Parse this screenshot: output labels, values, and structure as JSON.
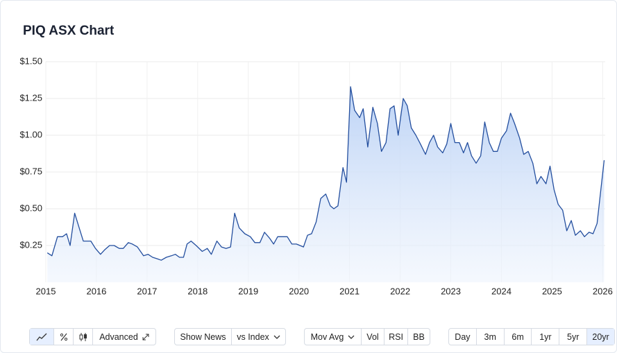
{
  "chart_data": {
    "type": "area",
    "title": "PIQ ASX Chart",
    "x": [
      2015.03,
      2015.12,
      2015.23,
      2015.33,
      2015.41,
      2015.48,
      2015.57,
      2015.66,
      2015.74,
      2015.89,
      2015.98,
      2016.08,
      2016.16,
      2016.26,
      2016.35,
      2016.45,
      2016.53,
      2016.63,
      2016.71,
      2016.81,
      2016.93,
      2017.02,
      2017.11,
      2017.2,
      2017.28,
      2017.38,
      2017.48,
      2017.56,
      2017.64,
      2017.72,
      2017.79,
      2017.87,
      2017.97,
      2018.09,
      2018.19,
      2018.27,
      2018.38,
      2018.47,
      2018.56,
      2018.65,
      2018.73,
      2018.82,
      2018.93,
      2019.04,
      2019.13,
      2019.23,
      2019.32,
      2019.42,
      2019.5,
      2019.58,
      2019.69,
      2019.77,
      2019.86,
      2019.95,
      2020.09,
      2020.17,
      2020.25,
      2020.34,
      2020.43,
      2020.53,
      2020.62,
      2020.69,
      2020.77,
      2020.87,
      2020.94,
      2021.02,
      2021.1,
      2021.2,
      2021.27,
      2021.36,
      2021.46,
      2021.55,
      2021.63,
      2021.72,
      2021.8,
      2021.88,
      2021.96,
      2022.06,
      2022.14,
      2022.22,
      2022.31,
      2022.4,
      2022.5,
      2022.58,
      2022.66,
      2022.74,
      2022.84,
      2022.92,
      2023.0,
      2023.08,
      2023.17,
      2023.25,
      2023.33,
      2023.41,
      2023.5,
      2023.59,
      2023.67,
      2023.76,
      2023.84,
      2023.92,
      2024.0,
      2024.1,
      2024.18,
      2024.26,
      2024.36,
      2024.44,
      2024.53,
      2024.62,
      2024.7,
      2024.78,
      2024.88,
      2024.96,
      2025.04,
      2025.12,
      2025.21,
      2025.29,
      2025.38,
      2025.46,
      2025.56,
      2025.64,
      2025.73,
      2025.81,
      2025.89,
      2025.97,
      2026.03
    ],
    "values": [
      0.2,
      0.18,
      0.31,
      0.31,
      0.33,
      0.25,
      0.47,
      0.37,
      0.28,
      0.28,
      0.23,
      0.19,
      0.22,
      0.25,
      0.25,
      0.23,
      0.23,
      0.27,
      0.26,
      0.24,
      0.18,
      0.19,
      0.17,
      0.16,
      0.15,
      0.17,
      0.18,
      0.19,
      0.17,
      0.17,
      0.26,
      0.28,
      0.25,
      0.21,
      0.23,
      0.19,
      0.28,
      0.24,
      0.23,
      0.24,
      0.47,
      0.37,
      0.33,
      0.31,
      0.27,
      0.27,
      0.34,
      0.3,
      0.26,
      0.31,
      0.31,
      0.31,
      0.26,
      0.26,
      0.24,
      0.32,
      0.33,
      0.41,
      0.57,
      0.6,
      0.52,
      0.5,
      0.52,
      0.78,
      0.68,
      1.33,
      1.17,
      1.12,
      1.18,
      0.92,
      1.19,
      1.08,
      0.89,
      0.95,
      1.18,
      1.2,
      1.0,
      1.25,
      1.2,
      1.05,
      1.0,
      0.94,
      0.87,
      0.95,
      1.0,
      0.92,
      0.88,
      0.94,
      1.08,
      0.95,
      0.95,
      0.88,
      0.95,
      0.86,
      0.81,
      0.86,
      1.09,
      0.95,
      0.89,
      0.89,
      0.98,
      1.03,
      1.15,
      1.08,
      0.98,
      0.87,
      0.89,
      0.81,
      0.67,
      0.72,
      0.67,
      0.79,
      0.63,
      0.53,
      0.49,
      0.35,
      0.42,
      0.32,
      0.35,
      0.31,
      0.34,
      0.33,
      0.4,
      0.65,
      0.83
    ],
    "color": "#234e9e",
    "xlim": [
      2015,
      2026.05
    ],
    "xticks": [
      2015,
      2016,
      2017,
      2018,
      2019,
      2020,
      2021,
      2022,
      2023,
      2024,
      2025,
      2026
    ],
    "ylim": [
      0,
      1.5
    ],
    "yticks": [
      {
        "value": 0.25,
        "label": "$0.25"
      },
      {
        "value": 0.5,
        "label": "$0.50"
      },
      {
        "value": 0.75,
        "label": "$0.75"
      },
      {
        "value": 1,
        "label": "$1.00"
      },
      {
        "value": 1.25,
        "label": "$1.25"
      },
      {
        "value": 1.5,
        "label": "$1.50"
      }
    ],
    "grid": true
  },
  "controls": {
    "advanced": "Advanced",
    "show_news": "Show News",
    "vs_index": "vs Index",
    "mov_avg": "Mov Avg",
    "vol": "Vol",
    "rsi": "RSI",
    "bb": "BB",
    "ranges": [
      "Day",
      "3m",
      "6m",
      "1yr",
      "5yr",
      "20yr"
    ]
  }
}
